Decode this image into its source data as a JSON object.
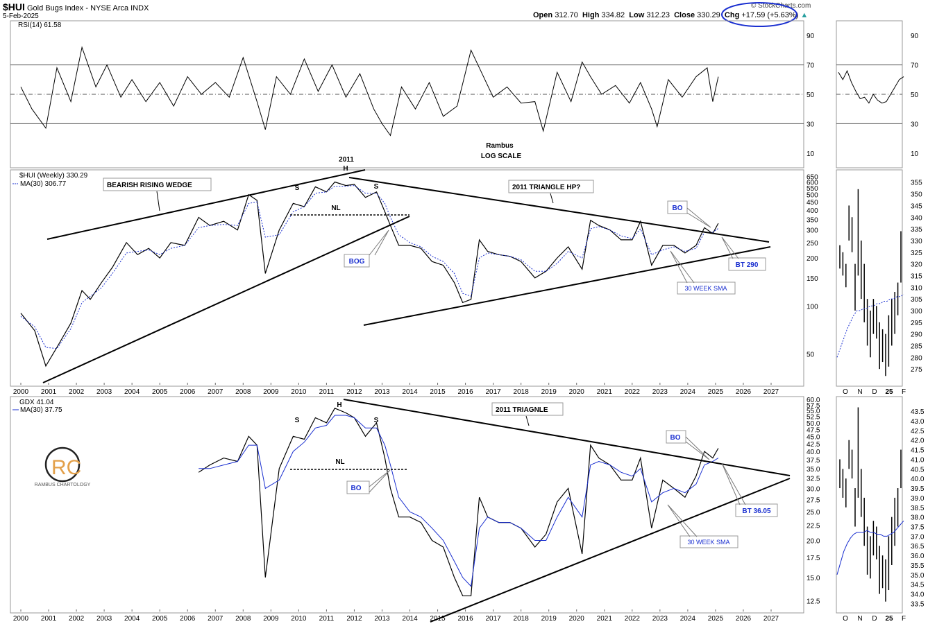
{
  "header": {
    "symbol": "$HUI",
    "name": "Gold Bugs Index - NYSE Arca INDX",
    "date": "5-Feb-2025",
    "open_label": "Open",
    "open": "312.70",
    "high_label": "High",
    "high": "334.82",
    "low_label": "Low",
    "low": "312.23",
    "close_label": "Close",
    "close": "330.29",
    "chg_label": "Chg",
    "chg": "+17.59 (+5.63%)",
    "brand": "© StockCharts.com",
    "circle_color": "#1a2fd0"
  },
  "watermark": {
    "letters": "RC",
    "name": "RAMBUS CHARTOLOGY",
    "color": "#e3a04a"
  },
  "chart_data": [
    {
      "type": "line",
      "panel": "rsi",
      "title": "RSI(14) 61.58",
      "annotation_lines": [
        "Rambus",
        "LOG SCALE"
      ],
      "ylim": [
        0,
        100
      ],
      "ticks": [
        90,
        70,
        50,
        30,
        10
      ],
      "levels": [
        70,
        50,
        30
      ],
      "x": [
        2000.0,
        2000.4,
        2000.9,
        2001.3,
        2001.8,
        2002.2,
        2002.7,
        2003.1,
        2003.6,
        2004.0,
        2004.5,
        2005.0,
        2005.5,
        2006.0,
        2006.5,
        2007.0,
        2007.5,
        2008.0,
        2008.5,
        2008.8,
        2009.2,
        2009.7,
        2010.2,
        2010.7,
        2011.2,
        2011.7,
        2012.2,
        2012.7,
        2013.0,
        2013.3,
        2013.7,
        2014.2,
        2014.7,
        2015.2,
        2015.7,
        2016.2,
        2016.5,
        2017.0,
        2017.5,
        2018.0,
        2018.5,
        2018.8,
        2019.3,
        2019.8,
        2020.2,
        2020.5,
        2020.9,
        2021.4,
        2021.9,
        2022.3,
        2022.7,
        2022.9,
        2023.3,
        2023.8,
        2024.3,
        2024.7,
        2024.9,
        2025.1
      ],
      "values": [
        55,
        40,
        27,
        68,
        45,
        82,
        55,
        70,
        48,
        60,
        45,
        58,
        42,
        62,
        50,
        58,
        48,
        75,
        45,
        26,
        62,
        50,
        74,
        52,
        70,
        48,
        64,
        40,
        30,
        22,
        55,
        40,
        58,
        35,
        42,
        80,
        68,
        48,
        55,
        44,
        45,
        25,
        65,
        45,
        72,
        62,
        50,
        56,
        44,
        58,
        40,
        28,
        60,
        48,
        62,
        68,
        45,
        62
      ],
      "inset": {
        "x_labels": [
          "O",
          "N",
          "D",
          "25",
          "F"
        ],
        "values": [
          65,
          60,
          66,
          58,
          52,
          47,
          48,
          44,
          50,
          46,
          44,
          45,
          50,
          55,
          60,
          62
        ]
      }
    },
    {
      "type": "line",
      "panel": "hui",
      "title": "$HUI (Weekly) 330.29",
      "legend": "MA(30) 306.77",
      "scale": "log",
      "ylim": [
        32,
        680
      ],
      "ticks": [
        650,
        600,
        550,
        500,
        450,
        400,
        350,
        300,
        250,
        200,
        150,
        100,
        50
      ],
      "x_ticks": [
        "2000",
        "2001",
        "2002",
        "2003",
        "2004",
        "2005",
        "2006",
        "2007",
        "2008",
        "2009",
        "2010",
        "2011",
        "2012",
        "2013",
        "2014",
        "2015",
        "2016",
        "2017",
        "2018",
        "2019",
        "2020",
        "2021",
        "2022",
        "2023",
        "2024",
        "2025",
        "2026",
        "2027"
      ],
      "x": [
        2000.0,
        2000.5,
        2000.9,
        2001.3,
        2001.8,
        2002.2,
        2002.5,
        2002.9,
        2003.3,
        2003.8,
        2004.2,
        2004.6,
        2005.0,
        2005.4,
        2005.9,
        2006.4,
        2006.8,
        2007.3,
        2007.8,
        2008.2,
        2008.5,
        2008.8,
        2009.3,
        2009.8,
        2010.2,
        2010.6,
        2011.0,
        2011.3,
        2011.7,
        2012.0,
        2012.4,
        2012.8,
        2013.1,
        2013.3,
        2013.6,
        2014.0,
        2014.4,
        2014.8,
        2015.2,
        2015.6,
        2015.9,
        2016.2,
        2016.5,
        2016.8,
        2017.2,
        2017.6,
        2018.0,
        2018.5,
        2018.9,
        2019.3,
        2019.7,
        2020.2,
        2020.5,
        2020.8,
        2021.2,
        2021.6,
        2022.0,
        2022.3,
        2022.7,
        2023.1,
        2023.5,
        2023.9,
        2024.3,
        2024.6,
        2024.9,
        2025.1
      ],
      "values": [
        90,
        70,
        42,
        55,
        78,
        125,
        110,
        140,
        175,
        250,
        210,
        230,
        200,
        250,
        240,
        360,
        320,
        340,
        300,
        500,
        460,
        160,
        300,
        440,
        420,
        560,
        520,
        600,
        570,
        580,
        480,
        520,
        390,
        320,
        240,
        240,
        230,
        190,
        180,
        140,
        105,
        110,
        260,
        220,
        210,
        205,
        190,
        150,
        165,
        200,
        235,
        170,
        345,
        320,
        300,
        260,
        260,
        340,
        180,
        240,
        240,
        215,
        240,
        310,
        285,
        330
      ],
      "ma30": [
        86,
        74,
        55,
        54,
        72,
        105,
        115,
        130,
        160,
        215,
        220,
        225,
        210,
        230,
        240,
        310,
        320,
        325,
        320,
        440,
        450,
        270,
        280,
        390,
        420,
        510,
        520,
        565,
        565,
        570,
        510,
        510,
        440,
        360,
        280,
        250,
        235,
        205,
        190,
        160,
        120,
        115,
        200,
        215,
        210,
        205,
        195,
        165,
        165,
        185,
        220,
        200,
        305,
        315,
        300,
        275,
        265,
        305,
        210,
        225,
        235,
        220,
        230,
        290,
        290,
        307
      ],
      "annotations": [
        "BEARISH RISING WEDGE",
        "2011",
        "H",
        "S",
        "S",
        "NL",
        "BOG",
        "2011 TRIANGLE HP?",
        "BO",
        "BT 290",
        "30 WEEK SMA"
      ],
      "inset": {
        "x_labels": [
          "O",
          "N",
          "D",
          "25",
          "F"
        ],
        "ticks": [
          355,
          350,
          345,
          340,
          335,
          330,
          325,
          320,
          315,
          310,
          305,
          300,
          295,
          290,
          285,
          280,
          275
        ],
        "ylim": [
          270,
          357
        ],
        "bars": [
          [
            318,
            328
          ],
          [
            315,
            325
          ],
          [
            310,
            320
          ],
          [
            330,
            345
          ],
          [
            325,
            340
          ],
          [
            300,
            320
          ],
          [
            315,
            352
          ],
          [
            305,
            330
          ],
          [
            295,
            320
          ],
          [
            285,
            305
          ],
          [
            280,
            300
          ],
          [
            290,
            305
          ],
          [
            288,
            302
          ],
          [
            275,
            295
          ],
          [
            278,
            292
          ],
          [
            272,
            290
          ],
          [
            276,
            298
          ],
          [
            285,
            305
          ],
          [
            290,
            308
          ],
          [
            298,
            312
          ],
          [
            312,
            334
          ]
        ],
        "ma": [
          280,
          284,
          288,
          292,
          295,
          298,
          300,
          300,
          301,
          301,
          302,
          302,
          303,
          303,
          304,
          304,
          305,
          305,
          306,
          306,
          307
        ]
      }
    },
    {
      "type": "line",
      "panel": "gdx",
      "title": "GDX 41.04",
      "legend": "MA(30) 37.75",
      "scale": "log",
      "ylim": [
        11.5,
        60
      ],
      "ticks": [
        60.0,
        57.5,
        55.0,
        52.5,
        50.0,
        47.5,
        45.0,
        42.5,
        40.0,
        37.5,
        35.0,
        32.5,
        30.0,
        27.5,
        25.0,
        22.5,
        20.0,
        17.5,
        15.0,
        12.5
      ],
      "x_ticks": [
        "2000",
        "2001",
        "2002",
        "2003",
        "2004",
        "2005",
        "2006",
        "2007",
        "2008",
        "2009",
        "2010",
        "2011",
        "2012",
        "2013",
        "2014",
        "2015",
        "2016",
        "2017",
        "2018",
        "2019",
        "2020",
        "2021",
        "2022",
        "2023",
        "2024",
        "2025",
        "2026",
        "2027"
      ],
      "x": [
        2006.4,
        2006.8,
        2007.3,
        2007.8,
        2008.2,
        2008.5,
        2008.8,
        2009.3,
        2009.8,
        2010.2,
        2010.6,
        2011.0,
        2011.3,
        2011.7,
        2012.0,
        2012.4,
        2012.8,
        2013.1,
        2013.3,
        2013.6,
        2014.0,
        2014.4,
        2014.8,
        2015.2,
        2015.6,
        2015.9,
        2016.2,
        2016.5,
        2016.8,
        2017.2,
        2017.6,
        2018.0,
        2018.5,
        2018.9,
        2019.3,
        2019.7,
        2020.2,
        2020.5,
        2020.8,
        2021.2,
        2021.6,
        2022.0,
        2022.3,
        2022.7,
        2023.1,
        2023.5,
        2023.9,
        2024.3,
        2024.6,
        2024.9,
        2025.1
      ],
      "values": [
        34,
        36,
        38,
        37,
        45,
        42,
        15,
        35,
        45,
        44,
        52,
        50,
        56,
        54,
        52,
        45,
        50,
        38,
        30,
        24,
        24,
        23,
        20,
        19,
        15,
        13,
        13,
        28,
        24,
        23,
        23,
        22,
        19,
        21,
        27,
        30,
        18,
        42,
        38,
        36,
        32,
        32,
        38,
        22,
        32,
        30,
        28,
        33,
        40,
        38,
        41
      ],
      "ma30": [
        35,
        35,
        36,
        37,
        42,
        42,
        30,
        32,
        40,
        43,
        48,
        49,
        53,
        53,
        52,
        48,
        48,
        42,
        36,
        28,
        25,
        24,
        22,
        20,
        17,
        15,
        14,
        22,
        24,
        23,
        23,
        22,
        20,
        20,
        24,
        28,
        24,
        36,
        37,
        36,
        34,
        33,
        35,
        27,
        29,
        30,
        29,
        31,
        36,
        37,
        38
      ],
      "annotations": [
        "2011 TRIAGNLE",
        "H",
        "S",
        "S",
        "NL",
        "BO",
        "BO",
        "BT 36.05",
        "30 WEEK SMA"
      ],
      "inset": {
        "x_labels": [
          "O",
          "N",
          "D",
          "25",
          "F"
        ],
        "ticks": [
          43.5,
          43.0,
          42.5,
          42.0,
          41.5,
          41.0,
          40.5,
          40.0,
          39.5,
          39.0,
          38.5,
          38.0,
          37.5,
          37.0,
          36.5,
          36.0,
          35.5,
          35.0,
          34.5,
          34.0,
          33.5
        ],
        "ylim": [
          33.3,
          43.9
        ],
        "bars": [
          [
            39.5,
            41.0
          ],
          [
            39.0,
            40.5
          ],
          [
            38.5,
            40.0
          ],
          [
            40.5,
            42.0
          ],
          [
            40.0,
            41.5
          ],
          [
            37.5,
            39.5
          ],
          [
            39.0,
            43.7
          ],
          [
            38.0,
            40.5
          ],
          [
            36.5,
            39.0
          ],
          [
            35.0,
            37.5
          ],
          [
            34.8,
            37.0
          ],
          [
            36.0,
            37.8
          ],
          [
            35.8,
            37.5
          ],
          [
            34.0,
            36.5
          ],
          [
            34.3,
            36.0
          ],
          [
            33.6,
            35.8
          ],
          [
            34.2,
            37.0
          ],
          [
            35.5,
            38.0
          ],
          [
            36.5,
            39.0
          ],
          [
            37.5,
            39.5
          ],
          [
            39.5,
            41.5
          ]
        ],
        "ma": [
          35.0,
          35.6,
          36.2,
          36.6,
          36.9,
          37.1,
          37.2,
          37.2,
          37.2,
          37.3,
          37.2,
          37.2,
          37.1,
          37.1,
          37.0,
          37.0,
          37.1,
          37.2,
          37.4,
          37.6,
          37.8
        ]
      }
    }
  ]
}
